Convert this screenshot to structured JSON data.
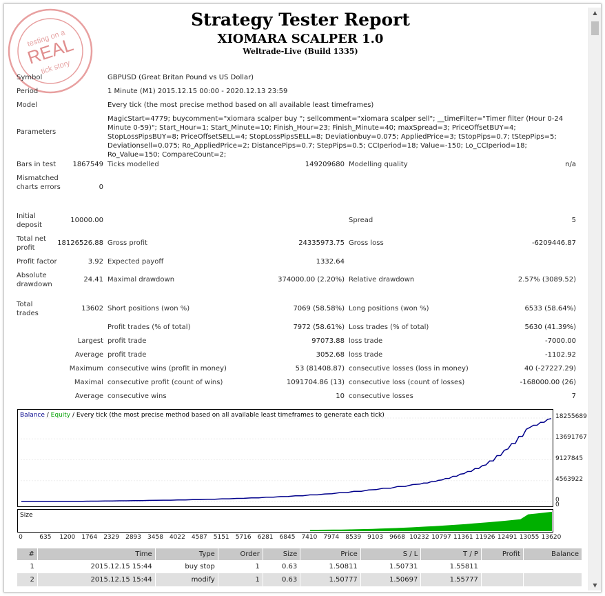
{
  "stamp": {
    "line1": "testing on a",
    "line2": "REAL",
    "line3": "tick story",
    "ring": "Testing EA is Strategy Tester"
  },
  "header": {
    "title": "Strategy Tester Report",
    "ea_name": "XIOMARA SCALPER 1.0",
    "server": "Weltrade-Live (Build 1335)"
  },
  "info": {
    "symbol_label": "Symbol",
    "symbol": "GBPUSD (Great Britan Pound vs US Dollar)",
    "period_label": "Period",
    "period": "1 Minute (M1) 2015.12.15 00:00 - 2020.12.13 23:59",
    "model_label": "Model",
    "model": "Every tick (the most precise method based on all available least timeframes)",
    "params_label": "Parameters",
    "params": "MagicStart=4779; buycomment=\"xiomara scalper buy \"; sellcomment=\"xiomara scalper sell\"; __timeFilter=\"Timer filter (Hour 0-24 Minute 0-59)\"; Start_Hour=1; Start_Minute=10; Finish_Hour=23; Finish_Minute=40; maxSpread=3; PriceOffsetBUY=4; StopLossPipsBUY=8; PriceOffsetSELL=4; StopLossPipsSELL=8; Deviationbuy=0.075; AppliedPrice=3; tStopPips=0.7; tStepPips=5; Deviationsell=0.075; Ro_AppliedPrice=2; DistancePips=0.7; StepPips=0.5; CCIperiod=18; Value=-150; Lo_CCIperiod=18; Ro_Value=150; CompareCount=2;"
  },
  "stats": {
    "bars_label": "Bars in test",
    "bars": "1867549",
    "ticks_label": "Ticks modelled",
    "ticks": "149209680",
    "quality_label": "Modelling quality",
    "quality": "n/a",
    "mismatch_label": "Mismatched charts errors",
    "mismatch": "0",
    "deposit_label": "Initial deposit",
    "deposit": "10000.00",
    "spread_label": "Spread",
    "spread": "5",
    "netprofit_label": "Total net profit",
    "netprofit": "18126526.88",
    "grossprofit_label": "Gross profit",
    "grossprofit": "24335973.75",
    "grossloss_label": "Gross loss",
    "grossloss": "-6209446.87",
    "pf_label": "Profit factor",
    "pf": "3.92",
    "payoff_label": "Expected payoff",
    "payoff": "1332.64",
    "absdd_label": "Absolute drawdown",
    "absdd": "24.41",
    "maxdd_label": "Maximal drawdown",
    "maxdd": "374000.00 (2.20%)",
    "reldd_label": "Relative drawdown",
    "reldd": "2.57% (3089.52)",
    "trades_label": "Total trades",
    "trades": "13602",
    "short_label": "Short positions (won %)",
    "short": "7069 (58.58%)",
    "long_label": "Long positions (won %)",
    "long": "6533 (58.64%)",
    "ptrades_label": "Profit trades (% of total)",
    "ptrades": "7972 (58.61%)",
    "ltrades_label": "Loss trades (% of total)",
    "ltrades": "5630 (41.39%)",
    "largest_label": "Largest",
    "largest_pt_label": "profit trade",
    "largest_pt": "97073.88",
    "largest_lt_label": "loss trade",
    "largest_lt": "-7000.00",
    "average_label": "Average",
    "average_pt_label": "profit trade",
    "average_pt": "3052.68",
    "average_lt_label": "loss trade",
    "average_lt": "-1102.92",
    "maximum_label": "Maximum",
    "max_cw_label": "consecutive wins (profit in money)",
    "max_cw": "53 (81408.87)",
    "max_cl_label": "consecutive losses (loss in money)",
    "max_cl": "40 (-27227.29)",
    "maximal_label": "Maximal",
    "mxl_cp_label": "consecutive profit (count of wins)",
    "mxl_cp": "1091704.86 (13)",
    "mxl_cl_label": "consecutive loss (count of losses)",
    "mxl_cl": "-168000.00 (26)",
    "average2_label": "Average",
    "avg_cw_label": "consecutive wins",
    "avg_cw": "10",
    "avg_cl_label": "consecutive losses",
    "avg_cl": "7"
  },
  "chart_legend": {
    "balance": "Balance",
    "sep": " / ",
    "equity": "Equity",
    "rest": " / Every tick (the most precise method based on all available least timeframes to generate each tick)"
  },
  "volume_label": "Size",
  "colors": {
    "balance": "#00008b",
    "equity": "#00a000",
    "volume": "#00b000"
  },
  "chart_data": {
    "type": "line",
    "title": "",
    "series": [
      {
        "name": "Balance",
        "x": [
          0,
          1200,
          2329,
          3458,
          4587,
          5716,
          6845,
          7974,
          9103,
          10232,
          10797,
          11361,
          11926,
          12491,
          13055,
          13602
        ],
        "y": [
          10000,
          30000,
          120000,
          250000,
          420000,
          700000,
          1100000,
          1700000,
          2600000,
          3800000,
          4700000,
          6100000,
          8000000,
          11500000,
          16200000,
          18136526
        ]
      }
    ],
    "y_ticks": [
      "18255689",
      "13691767",
      "9127845",
      "4563922",
      "0"
    ],
    "x_ticks": [
      "0",
      "635",
      "1200",
      "1764",
      "2329",
      "2893",
      "3458",
      "4022",
      "4587",
      "5151",
      "5716",
      "6281",
      "6845",
      "7410",
      "7974",
      "8539",
      "9103",
      "9668",
      "10232",
      "10797",
      "11361",
      "11926",
      "12491",
      "13055",
      "13620"
    ],
    "ylim": [
      0,
      18255689
    ],
    "xlim": [
      0,
      13620
    ]
  },
  "orders": {
    "headers": [
      "#",
      "Time",
      "Type",
      "Order",
      "Size",
      "Price",
      "S / L",
      "T / P",
      "Profit",
      "Balance"
    ],
    "rows": [
      [
        "1",
        "2015.12.15 15:44",
        "buy stop",
        "1",
        "0.63",
        "1.50811",
        "1.50731",
        "1.55811",
        "",
        ""
      ],
      [
        "2",
        "2015.12.15 15:44",
        "modify",
        "1",
        "0.63",
        "1.50777",
        "1.50697",
        "1.55777",
        "",
        ""
      ]
    ]
  }
}
